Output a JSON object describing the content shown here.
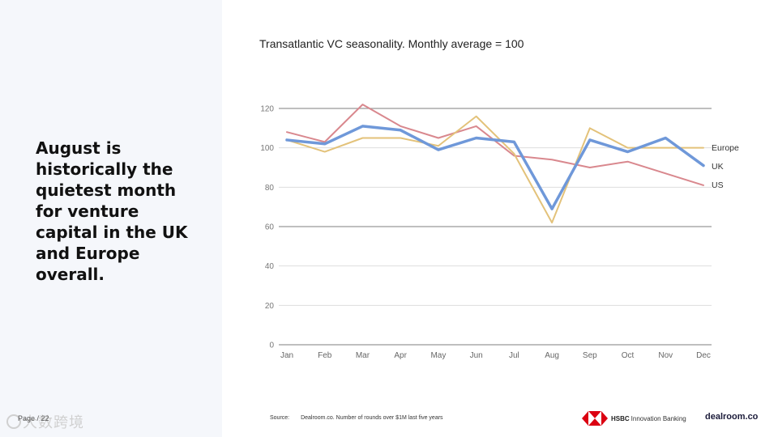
{
  "headline": "August is historically the quietest month for venture capital in the UK and Europe overall.",
  "page_number": "Page / 22",
  "watermark": "大数跨境",
  "source": {
    "label": "Source:",
    "text": "Dealroom.co. Number of rounds over $1M last five years"
  },
  "footer": {
    "hsbc_brand": "HSBC",
    "hsbc_suffix": "Innovation Banking",
    "dealroom": "dealroom.co"
  },
  "colors": {
    "europe": "#e3c27a",
    "uk": "#6f98d9",
    "us": "#d9888e",
    "grid": "#dddddd",
    "major_grid": "#999999"
  },
  "chart_data": {
    "type": "line",
    "title": "Transatlantic VC seasonality. Monthly average = 100",
    "categories": [
      "Jan",
      "Feb",
      "Mar",
      "Apr",
      "May",
      "Jun",
      "Jul",
      "Aug",
      "Sep",
      "Oct",
      "Nov",
      "Dec"
    ],
    "yticks": [
      0,
      20,
      40,
      60,
      80,
      100,
      120
    ],
    "ylim": [
      0,
      120
    ],
    "xlabel": "",
    "ylabel": "",
    "legend_position": "right-end labels",
    "series": [
      {
        "name": "Europe",
        "key": "europe",
        "values": [
          104,
          98,
          105,
          105,
          101,
          116,
          97,
          62,
          110,
          100,
          100,
          100
        ]
      },
      {
        "name": "UK",
        "key": "uk",
        "values": [
          104,
          102,
          111,
          109,
          99,
          105,
          103,
          69,
          104,
          98,
          105,
          91
        ]
      },
      {
        "name": "US",
        "key": "us",
        "values": [
          108,
          103,
          122,
          111,
          105,
          111,
          96,
          94,
          90,
          93,
          87,
          81
        ]
      }
    ]
  }
}
